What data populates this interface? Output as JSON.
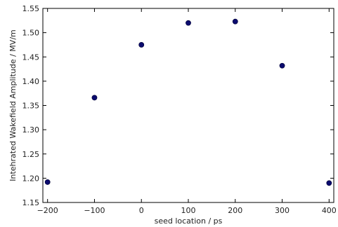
{
  "chart_data": {
    "type": "scatter",
    "title": "",
    "xlabel": "seed location / ps",
    "ylabel": "Intehrated Wakefield Amplitude / MV/m",
    "xlim": [
      -210,
      410
    ],
    "ylim": [
      1.15,
      1.55
    ],
    "xticks": [
      -200,
      -100,
      0,
      100,
      200,
      300,
      400
    ],
    "xtick_labels": [
      "−200",
      "−100",
      "0",
      "100",
      "200",
      "300",
      "400"
    ],
    "yticks": [
      1.15,
      1.2,
      1.25,
      1.3,
      1.35,
      1.4,
      1.45,
      1.5,
      1.55
    ],
    "ytick_labels": [
      "1.15",
      "1.20",
      "1.25",
      "1.30",
      "1.35",
      "1.40",
      "1.45",
      "1.50",
      "1.55"
    ],
    "grid": false,
    "series": [
      {
        "x": [
          -200,
          -100,
          0,
          100,
          200,
          300,
          400
        ],
        "y": [
          1.192,
          1.366,
          1.475,
          1.52,
          1.523,
          1.432,
          1.19
        ],
        "color": "#0b0b6e"
      }
    ]
  }
}
